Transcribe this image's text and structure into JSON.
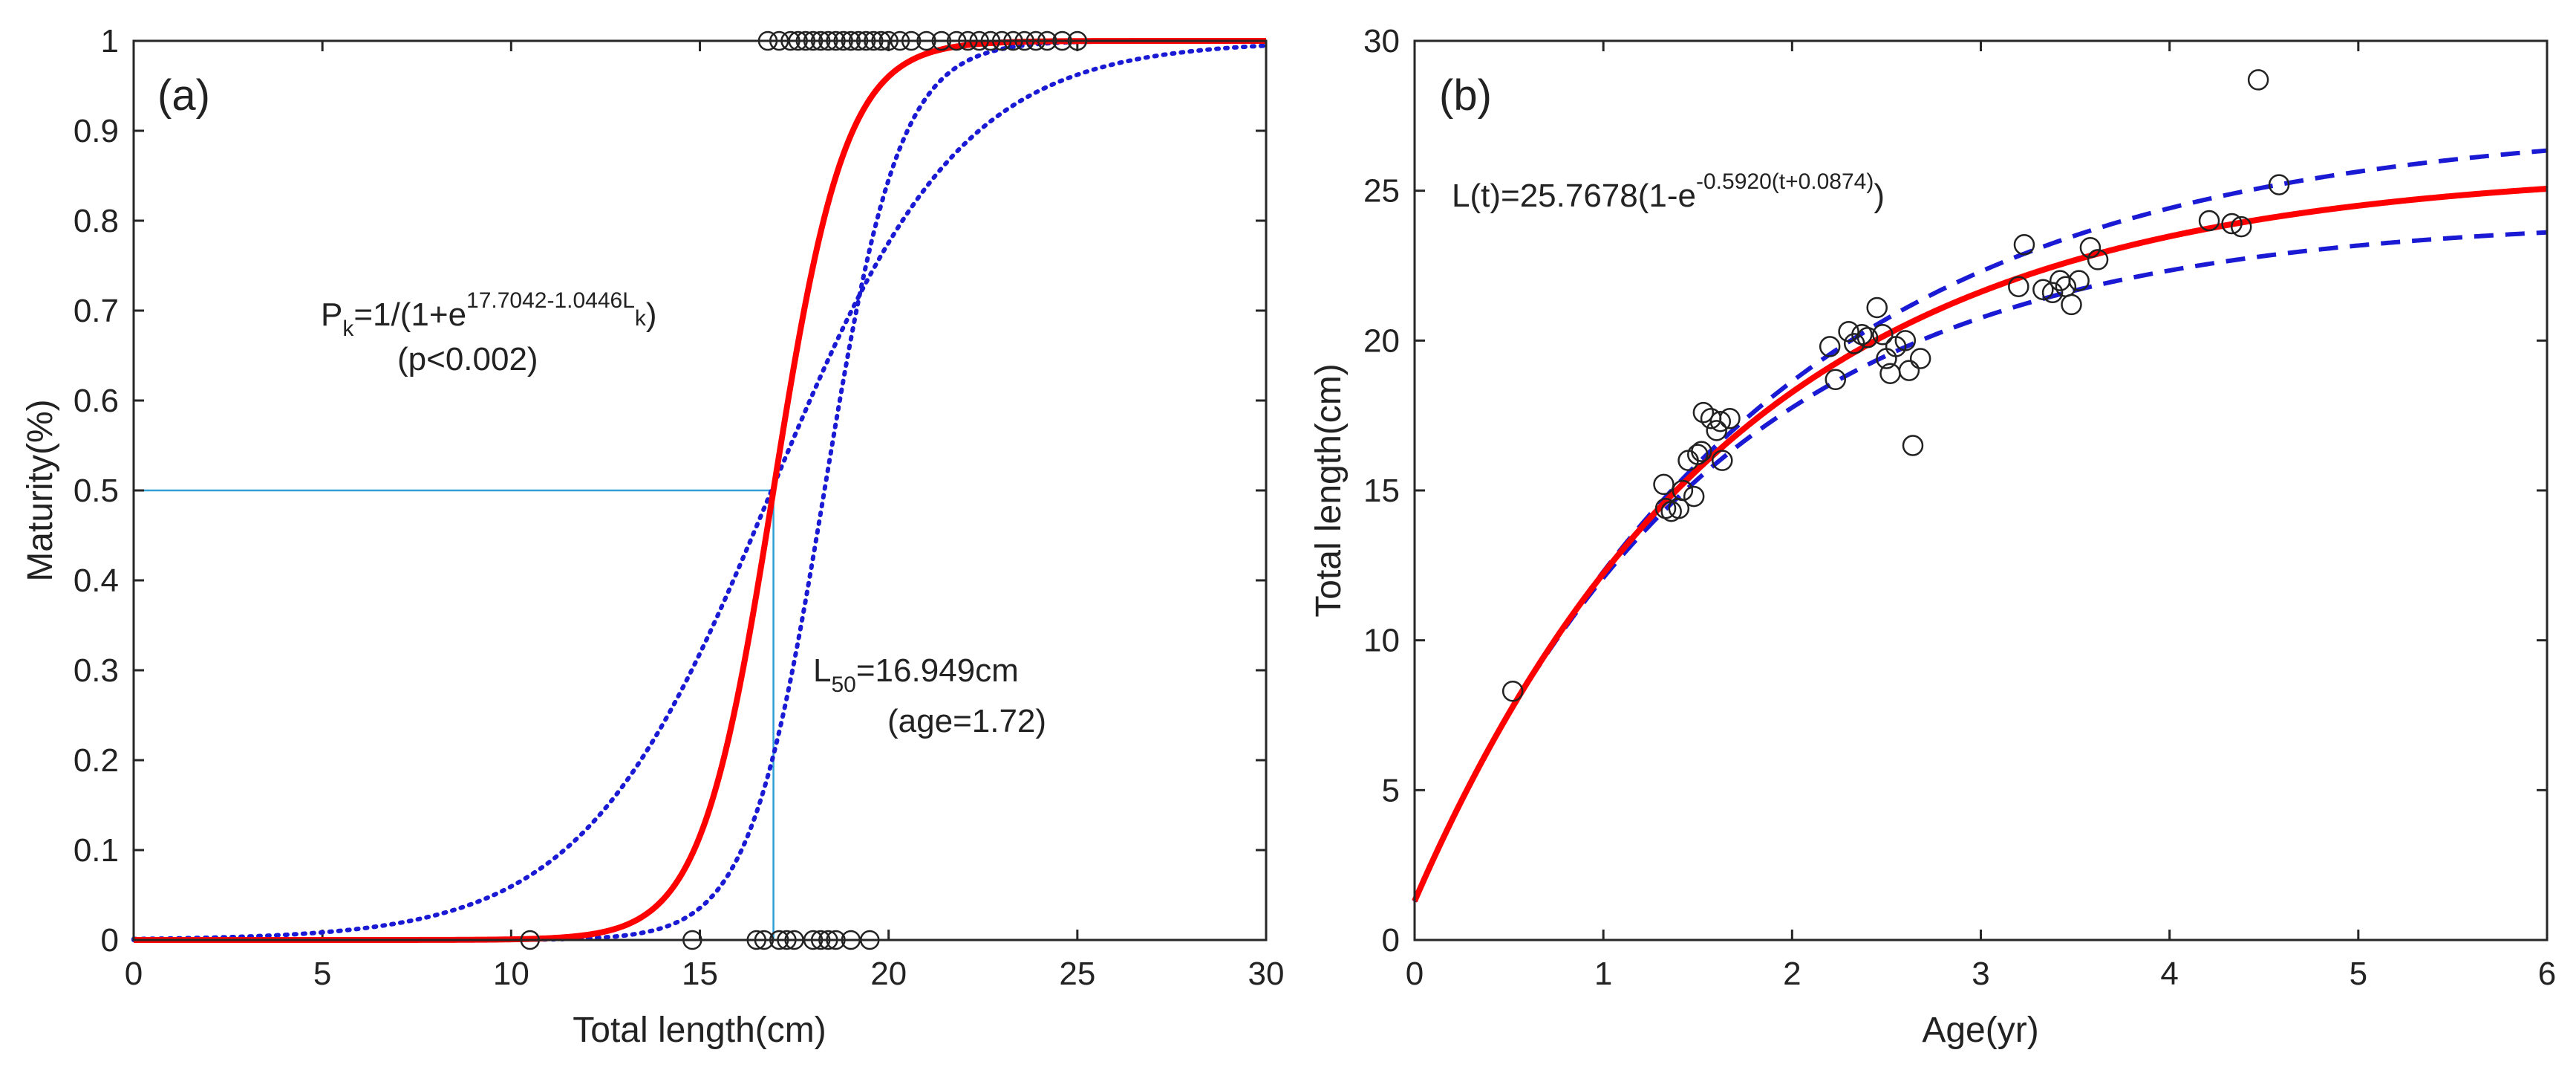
{
  "chart_data": [
    {
      "type": "line",
      "panel_label": "(a)",
      "title": "",
      "xlabel": "Total length(cm)",
      "ylabel": "Maturity(%)",
      "xlim": [
        0,
        30
      ],
      "ylim": [
        0,
        1
      ],
      "xticks": [
        0,
        5,
        10,
        15,
        20,
        25,
        30
      ],
      "yticks": [
        0,
        0.1,
        0.2,
        0.3,
        0.4,
        0.5,
        0.6,
        0.7,
        0.8,
        0.9,
        1
      ],
      "grid": false,
      "logistic_fit": {
        "a": 17.7042,
        "b": 1.0446,
        "color": "#ff0000"
      },
      "confidence_bounds": [
        {
          "L50": 16.9,
          "slope": 0.4,
          "color": "#1a1ad4"
        },
        {
          "L50": 18.3,
          "slope": 1.0,
          "color": "#1a1ad4"
        }
      ],
      "reference_lines": {
        "y": 0.5,
        "x": 16.949,
        "color": "#2f9fd6"
      },
      "mature_points_x": [
        16.8,
        17.1,
        17.4,
        17.6,
        17.8,
        18.0,
        18.2,
        18.4,
        18.6,
        18.8,
        19.0,
        19.2,
        19.4,
        19.6,
        19.8,
        20.0,
        20.3,
        20.6,
        21.0,
        21.4,
        21.8,
        22.1,
        22.4,
        22.7,
        23.0,
        23.3,
        23.6,
        23.9,
        24.2,
        24.6,
        25.0
      ],
      "immature_points_x": [
        10.5,
        14.8,
        16.5,
        16.7,
        17.1,
        17.3,
        17.5,
        18.0,
        18.2,
        18.4,
        18.6,
        19.0,
        19.5
      ],
      "annotations": {
        "model_main": "P",
        "model_sub_k": "k",
        "model_eq_mid": "=1/(1+e",
        "model_exponent": "17.7042-1.0446L",
        "model_close": ")",
        "model_p": "(p<0.002)",
        "l50_main": "L",
        "l50_sub": "50",
        "l50_value": "=16.949cm",
        "l50_age": "(age=1.72)"
      }
    },
    {
      "type": "scatter",
      "panel_label": "(b)",
      "title": "",
      "xlabel": "Age(yr)",
      "ylabel": "Total length(cm)",
      "xlim": [
        0,
        6
      ],
      "ylim": [
        0,
        30
      ],
      "xticks": [
        0,
        1,
        2,
        3,
        4,
        5,
        6
      ],
      "yticks": [
        0,
        5,
        10,
        15,
        20,
        25,
        30
      ],
      "grid": false,
      "von_bertalanffy": {
        "Linf": 25.7678,
        "K": 0.592,
        "t0": -0.0874,
        "color": "#ff0000"
      },
      "confidence_bounds": [
        {
          "Linf": 27.3,
          "K": 0.55,
          "t0": -0.0874,
          "color": "#1a1ad4"
        },
        {
          "Linf": 24.1,
          "K": 0.64,
          "t0": -0.0874,
          "color": "#1a1ad4"
        }
      ],
      "points": [
        [
          0.52,
          8.3
        ],
        [
          1.32,
          15.2
        ],
        [
          1.33,
          14.4
        ],
        [
          1.36,
          14.3
        ],
        [
          1.4,
          14.4
        ],
        [
          1.42,
          15.0
        ],
        [
          1.45,
          16.0
        ],
        [
          1.48,
          14.8
        ],
        [
          1.5,
          16.2
        ],
        [
          1.52,
          16.3
        ],
        [
          1.53,
          17.6
        ],
        [
          1.57,
          17.4
        ],
        [
          1.6,
          17.0
        ],
        [
          1.62,
          17.3
        ],
        [
          1.63,
          16.0
        ],
        [
          1.67,
          17.4
        ],
        [
          2.2,
          19.8
        ],
        [
          2.23,
          18.7
        ],
        [
          2.3,
          20.3
        ],
        [
          2.33,
          19.9
        ],
        [
          2.37,
          20.2
        ],
        [
          2.4,
          20.1
        ],
        [
          2.45,
          21.1
        ],
        [
          2.48,
          20.2
        ],
        [
          2.5,
          19.4
        ],
        [
          2.52,
          18.9
        ],
        [
          2.55,
          19.8
        ],
        [
          2.6,
          20.0
        ],
        [
          2.62,
          19.0
        ],
        [
          2.64,
          16.5
        ],
        [
          2.68,
          19.4
        ],
        [
          3.2,
          21.8
        ],
        [
          3.23,
          23.2
        ],
        [
          3.33,
          21.7
        ],
        [
          3.38,
          21.6
        ],
        [
          3.42,
          22.0
        ],
        [
          3.45,
          21.8
        ],
        [
          3.48,
          21.2
        ],
        [
          3.52,
          22.0
        ],
        [
          3.58,
          23.1
        ],
        [
          3.62,
          22.7
        ],
        [
          4.21,
          24.0
        ],
        [
          4.33,
          23.9
        ],
        [
          4.38,
          23.8
        ],
        [
          4.47,
          28.7
        ],
        [
          4.58,
          25.2
        ]
      ],
      "annotations": {
        "eq_main": "L(t)=25.7678(1-e",
        "eq_exponent": "-0.5920(t+0.0874)",
        "eq_close": ")"
      }
    }
  ]
}
